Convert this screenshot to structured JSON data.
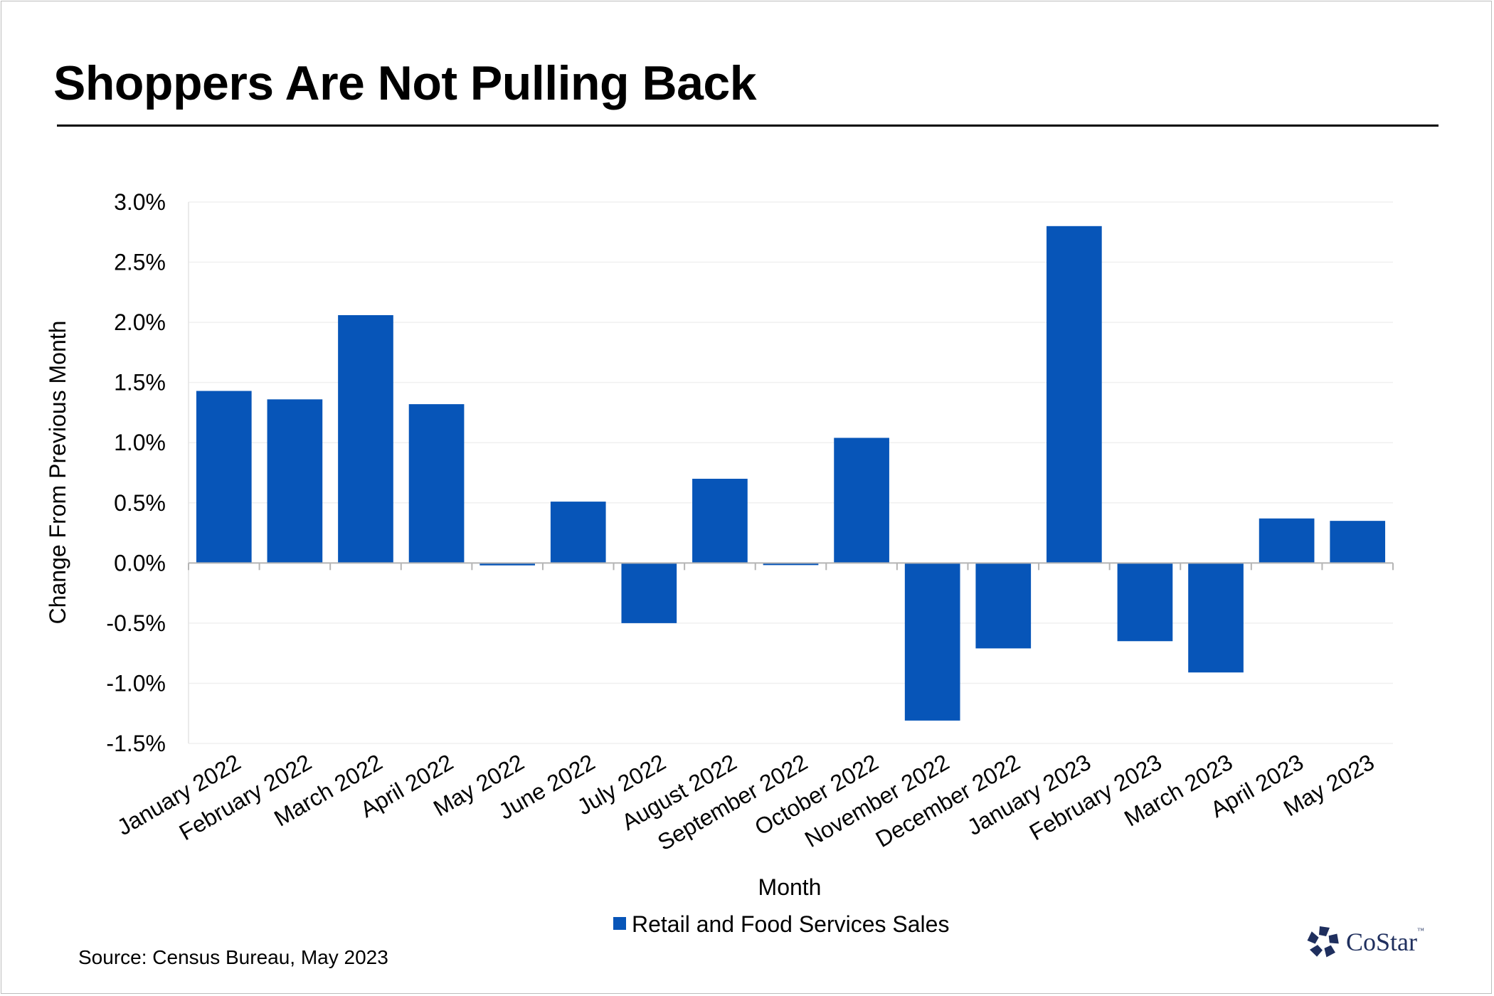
{
  "title": "Shoppers Are Not Pulling Back",
  "source": "Source: Census Bureau, May 2023",
  "logo": {
    "text": "CoStar",
    "tm": "™"
  },
  "colors": {
    "bar": "#0755b8",
    "logo": "#1f2f5e"
  },
  "chart_data": {
    "type": "bar",
    "categories": [
      "January 2022",
      "February 2022",
      "March 2022",
      "April 2022",
      "May 2022",
      "June 2022",
      "July 2022",
      "August 2022",
      "September 2022",
      "October 2022",
      "November 2022",
      "December 2022",
      "January 2023",
      "February 2023",
      "March 2023",
      "April 2023",
      "May 2023"
    ],
    "series": [
      {
        "name": "Retail and Food Services Sales",
        "values": [
          1.43,
          1.36,
          2.06,
          1.32,
          -0.02,
          0.51,
          -0.5,
          0.7,
          -0.01,
          1.04,
          -1.31,
          -0.71,
          2.8,
          -0.65,
          -0.91,
          0.37,
          0.35
        ]
      }
    ],
    "xlabel": "Month",
    "ylabel": "Change From Previous Month",
    "ylim": [
      -1.5,
      3.0
    ],
    "yticks": [
      "3.0%",
      "2.5%",
      "2.0%",
      "1.5%",
      "1.0%",
      "0.5%",
      "0.0%",
      "-0.5%",
      "-1.0%",
      "-1.5%"
    ],
    "grid": true,
    "legend": "bottom-center"
  }
}
